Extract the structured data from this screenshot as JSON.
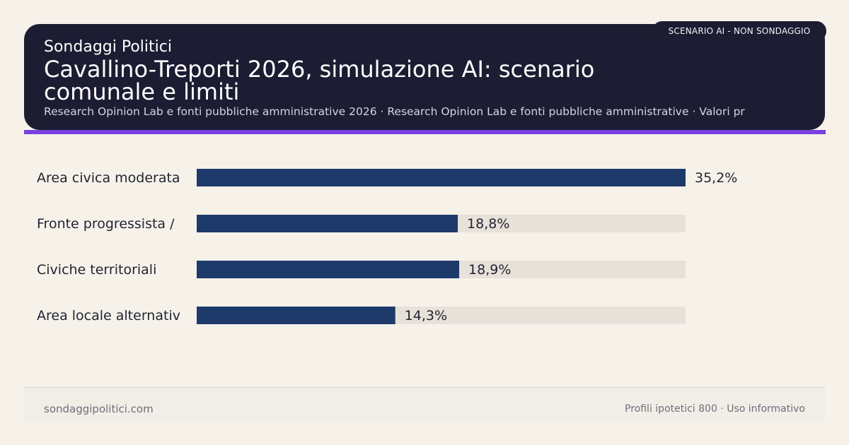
{
  "header": {
    "brand": "Sondaggi Politici",
    "title": "Cavallino-Treporti 2026, simulazione AI: scenario comunale e limiti",
    "sources": "Research Opinion Lab e fonti pubbliche amministrative 2026 · Research Opinion Lab e fonti pubbliche amministrative · Valori pr",
    "badge": "SCENARIO AI - NON SONDAGGIO"
  },
  "colors": {
    "header_bg": "#1c1c32",
    "accent": "#7a3fe0",
    "bar": "#1d3a6b",
    "track": "#e8e1da",
    "page_bg": "#f6f2ea"
  },
  "chart_data": {
    "type": "bar",
    "orientation": "horizontal",
    "categories": [
      "Area civica moderata",
      "Fronte progressista /",
      "Civiche territoriali",
      "Area locale alternativ"
    ],
    "values": [
      35.2,
      18.8,
      18.9,
      14.3
    ],
    "value_labels": [
      "35,2%",
      "18,8%",
      "18,9%",
      "14,3%"
    ],
    "xlim": [
      0,
      35.2
    ],
    "grid": false
  },
  "footer": {
    "site": "sondaggipolitici.com",
    "note": "Profili ipotetici 800 · Uso informativo"
  }
}
